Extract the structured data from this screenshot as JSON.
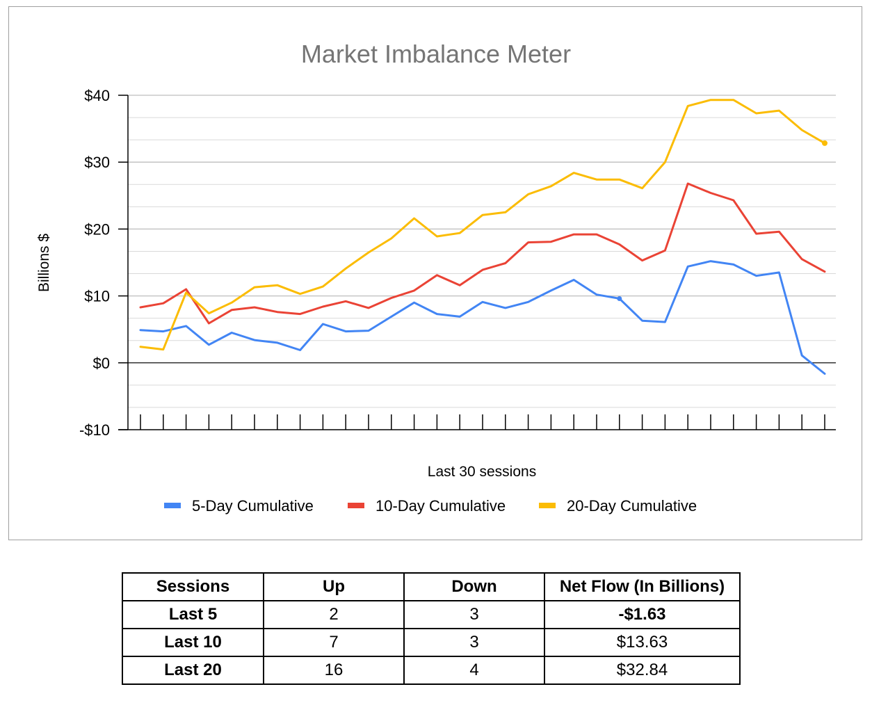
{
  "chart_data": {
    "type": "line",
    "title": "Market Imbalance Meter",
    "xlabel": "Last 30 sessions",
    "ylabel": "Billions $",
    "ylim": [
      -10,
      40
    ],
    "yticks": [
      -10,
      0,
      10,
      20,
      30,
      40
    ],
    "ytick_labels": [
      "-$10",
      "$0",
      "$10",
      "$20",
      "$30",
      "$40"
    ],
    "x": [
      1,
      2,
      3,
      4,
      5,
      6,
      7,
      8,
      9,
      10,
      11,
      12,
      13,
      14,
      15,
      16,
      17,
      18,
      19,
      20,
      21,
      22,
      23,
      24,
      25,
      26,
      27,
      28,
      29,
      30,
      31
    ],
    "grid": true,
    "legend_position": "bottom",
    "series": [
      {
        "name": "5-Day Cumulative",
        "color": "#4285f4",
        "values": [
          4.9,
          4.7,
          5.5,
          2.7,
          4.5,
          3.4,
          3.0,
          1.9,
          5.8,
          4.7,
          4.8,
          6.9,
          9.0,
          7.3,
          6.9,
          9.1,
          8.2,
          9.1,
          10.8,
          12.4,
          10.2,
          9.6,
          6.3,
          6.1,
          14.4,
          15.2,
          14.7,
          13.0,
          13.5,
          1.1,
          -1.63
        ]
      },
      {
        "name": "10-Day Cumulative",
        "color": "#ea4335",
        "values": [
          8.3,
          8.9,
          11.0,
          5.9,
          7.9,
          8.3,
          7.6,
          7.3,
          8.4,
          9.2,
          8.2,
          9.7,
          10.8,
          13.1,
          11.6,
          13.9,
          14.9,
          18.0,
          18.1,
          19.2,
          19.2,
          17.7,
          15.3,
          16.8,
          26.8,
          25.4,
          24.3,
          19.3,
          19.6,
          15.5,
          13.63
        ]
      },
      {
        "name": "20-Day Cumulative",
        "color": "#fbbc04",
        "values": [
          2.4,
          2.0,
          10.5,
          7.4,
          9.0,
          11.3,
          11.6,
          10.3,
          11.4,
          14.1,
          16.5,
          18.6,
          21.6,
          18.9,
          19.4,
          22.1,
          22.5,
          25.2,
          26.4,
          28.4,
          27.4,
          27.4,
          26.1,
          30.0,
          38.4,
          39.3,
          39.3,
          37.3,
          37.7,
          34.8,
          32.84
        ]
      }
    ]
  },
  "table": {
    "headers": [
      "Sessions",
      "Up",
      "Down",
      "Net Flow (In Billions)"
    ],
    "rows": [
      [
        "Last 5",
        "2",
        "3",
        "-$1.63"
      ],
      [
        "Last 10",
        "7",
        "3",
        "$13.63"
      ],
      [
        "Last 20",
        "16",
        "4",
        "$32.84"
      ]
    ]
  }
}
